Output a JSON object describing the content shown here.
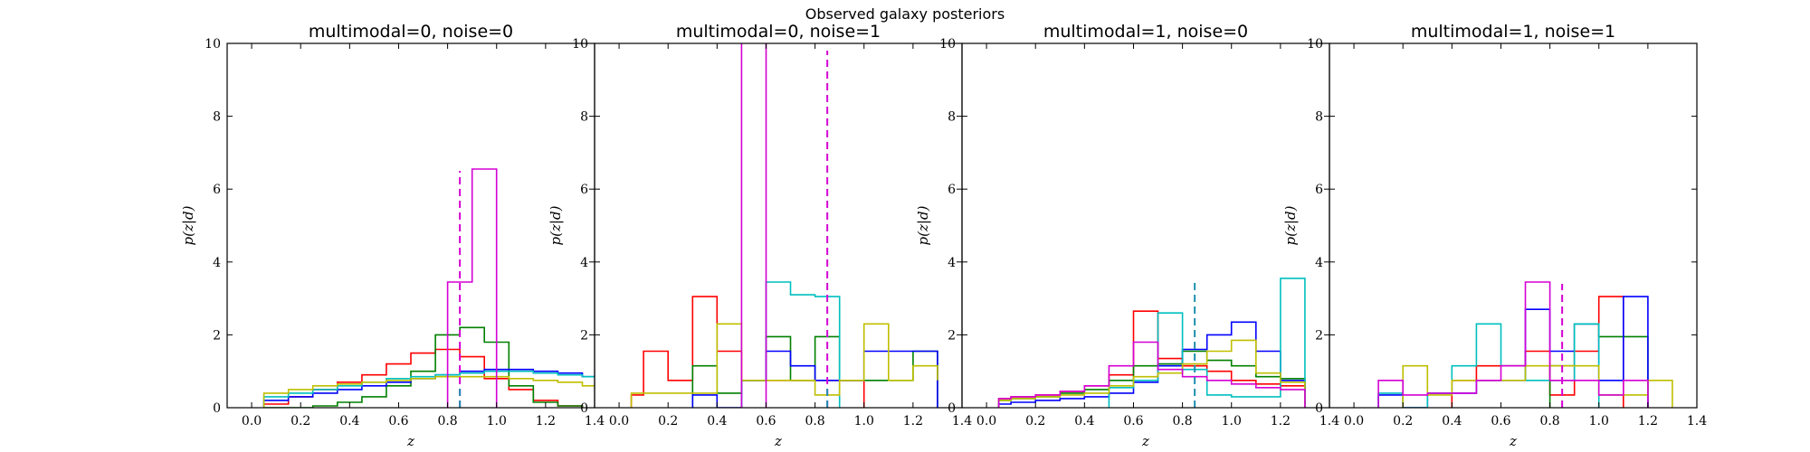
{
  "figure": {
    "title": "Observed galaxy posteriors"
  },
  "chart_data": [
    {
      "type": "histogram",
      "title": "multimodal=0, noise=0",
      "xlabel": "z",
      "ylabel": "p(z|d)",
      "xlim": [
        -0.1,
        1.4
      ],
      "ylim": [
        0,
        10
      ],
      "xticks": [
        "0.0",
        "0.2",
        "0.4",
        "0.6",
        "0.8",
        "1.0",
        "1.2",
        "1.4"
      ],
      "yticks": [
        "0",
        "2",
        "4",
        "6",
        "8",
        "10"
      ],
      "series": [
        {
          "color": "#ff0000",
          "edges": [
            0.05,
            0.15,
            0.25,
            0.35,
            0.45,
            0.55,
            0.65,
            0.75,
            0.85,
            0.95,
            1.05,
            1.15,
            1.25,
            1.35
          ],
          "values": [
            0.1,
            0.3,
            0.5,
            0.7,
            0.9,
            1.2,
            1.5,
            1.6,
            1.4,
            0.8,
            0.5,
            0.2,
            0.05
          ]
        },
        {
          "color": "#008000",
          "edges": [
            0.05,
            0.15,
            0.25,
            0.35,
            0.45,
            0.55,
            0.65,
            0.75,
            0.85,
            0.95,
            1.05,
            1.15,
            1.25,
            1.35
          ],
          "values": [
            0.0,
            0.0,
            0.05,
            0.15,
            0.3,
            0.6,
            1.0,
            2.0,
            2.2,
            1.8,
            0.6,
            0.15,
            0.05
          ]
        },
        {
          "color": "#0000ff",
          "edges": [
            0.05,
            0.15,
            0.25,
            0.35,
            0.45,
            0.55,
            0.65,
            0.75,
            0.85,
            0.95,
            1.05,
            1.15,
            1.25,
            1.35,
            1.45
          ],
          "values": [
            0.2,
            0.3,
            0.4,
            0.5,
            0.6,
            0.7,
            0.8,
            0.9,
            1.0,
            1.05,
            1.05,
            1.0,
            0.95,
            0.85
          ]
        },
        {
          "color": "#00bfbf",
          "edges": [
            0.05,
            0.15,
            0.25,
            0.35,
            0.45,
            0.55,
            0.65,
            0.75,
            0.85,
            0.95,
            1.05,
            1.15,
            1.25,
            1.35,
            1.45
          ],
          "values": [
            0.3,
            0.4,
            0.5,
            0.6,
            0.7,
            0.8,
            0.85,
            0.9,
            0.95,
            1.0,
            1.0,
            0.95,
            0.9,
            0.85
          ]
        },
        {
          "color": "#bfbf00",
          "edges": [
            0.05,
            0.15,
            0.25,
            0.35,
            0.45,
            0.55,
            0.65,
            0.75,
            0.85,
            0.95,
            1.05,
            1.15,
            1.25,
            1.35,
            1.45
          ],
          "values": [
            0.4,
            0.5,
            0.6,
            0.65,
            0.7,
            0.75,
            0.8,
            0.85,
            0.85,
            0.85,
            0.8,
            0.75,
            0.7,
            0.6
          ]
        },
        {
          "color": "#d400d4",
          "edges": [
            0.8,
            0.9,
            1.0
          ],
          "values": [
            3.45,
            6.55
          ]
        }
      ],
      "truth": {
        "x": 0.85,
        "y": 6.5,
        "colors": [
          "#d400d4",
          "#1f8fb0"
        ]
      }
    },
    {
      "type": "histogram",
      "title": "multimodal=0, noise=1",
      "xlabel": "z",
      "ylabel": "p(z|d)",
      "xlim": [
        -0.1,
        1.4
      ],
      "ylim": [
        0,
        10
      ],
      "xticks": [
        "0.0",
        "0.2",
        "0.4",
        "0.6",
        "0.8",
        "1.0",
        "1.2",
        "1.4"
      ],
      "yticks": [
        "0",
        "2",
        "4",
        "6",
        "8",
        "10"
      ],
      "series": [
        {
          "color": "#ff0000",
          "edges": [
            0.05,
            0.1,
            0.2,
            0.3,
            0.4,
            0.5,
            0.6,
            0.7,
            0.8,
            0.9,
            1.0
          ],
          "values": [
            0.35,
            1.55,
            0.75,
            3.05,
            1.55,
            0.75,
            0.75,
            0.75,
            0.75,
            0.75
          ]
        },
        {
          "color": "#008000",
          "edges": [
            0.3,
            0.4,
            0.5,
            0.6,
            0.7,
            0.8,
            0.9,
            1.0,
            1.1,
            1.2,
            1.3
          ],
          "values": [
            1.15,
            0.4,
            0.75,
            1.95,
            0.75,
            1.95,
            0.75,
            0.75,
            0.75,
            1.55
          ]
        },
        {
          "color": "#0000ff",
          "edges": [
            0.3,
            0.4,
            0.5,
            0.6,
            0.7,
            0.8,
            0.9,
            1.0,
            1.1,
            1.2,
            1.3
          ],
          "values": [
            0.35,
            0.0,
            0.75,
            1.55,
            1.15,
            0.75,
            0.75,
            1.55,
            1.55,
            1.55
          ]
        },
        {
          "color": "#00bfbf",
          "edges": [
            0.5,
            0.6,
            0.7,
            0.8,
            0.9
          ],
          "values": [
            0.75,
            3.45,
            3.1,
            3.05
          ]
        },
        {
          "color": "#bfbf00",
          "edges": [
            0.05,
            0.2,
            0.3,
            0.4,
            0.5,
            0.6,
            0.7,
            0.8,
            0.9,
            1.0,
            1.1,
            1.2,
            1.3
          ],
          "values": [
            0.4,
            0.4,
            0.4,
            2.3,
            0.75,
            0.75,
            0.75,
            0.35,
            0.75,
            2.3,
            0.75,
            1.15,
            0.75
          ]
        },
        {
          "color": "#d400d4",
          "edges": [
            0.5,
            0.6
          ],
          "values": [
            10.5
          ]
        }
      ],
      "truth": {
        "x": 0.85,
        "y": 9.8,
        "colors": [
          "#d400d4",
          "#1f8fb0"
        ]
      }
    },
    {
      "type": "histogram",
      "title": "multimodal=1, noise=0",
      "xlabel": "z",
      "ylabel": "p(z|d)",
      "xlim": [
        -0.1,
        1.4
      ],
      "ylim": [
        0,
        10
      ],
      "xticks": [
        "0.0",
        "0.2",
        "0.4",
        "0.6",
        "0.8",
        "1.0",
        "1.2",
        "1.4"
      ],
      "yticks": [
        "0",
        "2",
        "4",
        "6",
        "8",
        "10"
      ],
      "series": [
        {
          "color": "#ff0000",
          "edges": [
            0.05,
            0.1,
            0.2,
            0.3,
            0.4,
            0.5,
            0.6,
            0.7,
            0.8,
            0.9,
            1.0,
            1.1,
            1.2,
            1.3
          ],
          "values": [
            0.25,
            0.3,
            0.35,
            0.45,
            0.6,
            0.9,
            2.65,
            1.35,
            1.15,
            1.0,
            0.75,
            0.65,
            0.6
          ]
        },
        {
          "color": "#008000",
          "edges": [
            0.05,
            0.1,
            0.2,
            0.3,
            0.4,
            0.5,
            0.6,
            0.7,
            0.8,
            0.9,
            1.0,
            1.1,
            1.2,
            1.3
          ],
          "values": [
            0.2,
            0.25,
            0.3,
            0.4,
            0.5,
            0.75,
            1.15,
            1.2,
            1.55,
            1.3,
            1.15,
            0.85,
            0.8
          ]
        },
        {
          "color": "#0000ff",
          "edges": [
            0.05,
            0.1,
            0.2,
            0.3,
            0.4,
            0.5,
            0.6,
            0.7,
            0.8,
            0.9,
            1.0,
            1.1,
            1.2,
            1.3
          ],
          "values": [
            0.1,
            0.15,
            0.2,
            0.25,
            0.3,
            0.4,
            0.7,
            1.15,
            1.6,
            2.0,
            2.35,
            1.55,
            0.75
          ]
        },
        {
          "color": "#00bfbf",
          "edges": [
            0.5,
            0.6,
            0.7,
            0.8,
            0.9,
            1.0,
            1.1,
            1.2,
            1.3
          ],
          "values": [
            0.55,
            0.75,
            2.6,
            1.05,
            0.35,
            0.3,
            0.3,
            3.55
          ]
        },
        {
          "color": "#bfbf00",
          "edges": [
            0.05,
            0.1,
            0.2,
            0.3,
            0.4,
            0.5,
            0.6,
            0.7,
            0.8,
            0.9,
            1.0,
            1.1,
            1.2,
            1.3
          ],
          "values": [
            0.2,
            0.25,
            0.3,
            0.35,
            0.4,
            0.6,
            0.85,
            0.95,
            1.2,
            1.55,
            1.85,
            0.95,
            0.7
          ]
        },
        {
          "color": "#d400d4",
          "edges": [
            0.05,
            0.1,
            0.2,
            0.3,
            0.4,
            0.5,
            0.6,
            0.7,
            0.8,
            0.9,
            1.0,
            1.1,
            1.2,
            1.3
          ],
          "values": [
            0.25,
            0.3,
            0.35,
            0.45,
            0.6,
            1.15,
            1.8,
            1.05,
            0.85,
            0.75,
            0.65,
            0.55,
            0.5
          ]
        }
      ],
      "truth": {
        "x": 0.85,
        "y": 3.5,
        "colors": [
          "#1f8fb0"
        ]
      }
    },
    {
      "type": "histogram",
      "title": "multimodal=1, noise=1",
      "xlabel": "z",
      "ylabel": "p(z|d)",
      "xlim": [
        -0.1,
        1.4
      ],
      "ylim": [
        0,
        10
      ],
      "xticks": [
        "0.0",
        "0.2",
        "0.4",
        "0.6",
        "0.8",
        "1.0",
        "1.2",
        "1.4"
      ],
      "yticks": [
        "0",
        "2",
        "4",
        "6",
        "8",
        "10"
      ],
      "series": [
        {
          "color": "#ff0000",
          "edges": [
            0.4,
            0.5,
            0.6,
            0.7,
            0.8,
            0.9,
            1.0,
            1.1
          ],
          "values": [
            0.75,
            1.15,
            1.15,
            1.55,
            0.35,
            1.55,
            3.05
          ]
        },
        {
          "color": "#008000",
          "edges": [
            0.8,
            0.9,
            1.0,
            1.1,
            1.2
          ],
          "values": [
            1.15,
            2.3,
            1.95,
            1.95
          ]
        },
        {
          "color": "#0000ff",
          "edges": [
            0.1,
            0.2,
            0.3,
            0.4,
            0.5,
            0.6,
            0.7,
            0.8,
            0.9,
            1.0,
            1.1,
            1.2
          ],
          "values": [
            0.35,
            0.0,
            0.4,
            0.4,
            0.75,
            0.75,
            2.7,
            1.55,
            2.3,
            0.75,
            3.05
          ]
        },
        {
          "color": "#00bfbf",
          "edges": [
            0.1,
            0.2,
            0.3,
            0.4,
            0.5,
            0.6,
            0.7,
            0.8,
            0.9,
            1.0
          ],
          "values": [
            0.4,
            0.0,
            0.4,
            1.15,
            2.3,
            1.15,
            0.75,
            0.75,
            2.3
          ]
        },
        {
          "color": "#bfbf00",
          "edges": [
            0.2,
            0.3,
            0.4,
            0.5,
            0.6,
            0.7,
            0.8,
            0.9,
            1.0,
            1.1,
            1.2,
            1.3
          ],
          "values": [
            1.15,
            0.35,
            0.75,
            0.75,
            0.75,
            1.15,
            1.15,
            1.15,
            0.35,
            0.35,
            0.75
          ]
        },
        {
          "color": "#d400d4",
          "edges": [
            0.1,
            0.2,
            0.3,
            0.4,
            0.5,
            0.6,
            0.7,
            0.8,
            0.9,
            1.0,
            1.1,
            1.2
          ],
          "values": [
            0.75,
            0.35,
            0.4,
            0.4,
            0.75,
            1.15,
            3.45,
            0.75,
            0.75,
            0.35,
            0.75
          ]
        }
      ],
      "truth": {
        "x": 0.85,
        "y": 3.4,
        "colors": [
          "#d400d4"
        ]
      }
    }
  ]
}
